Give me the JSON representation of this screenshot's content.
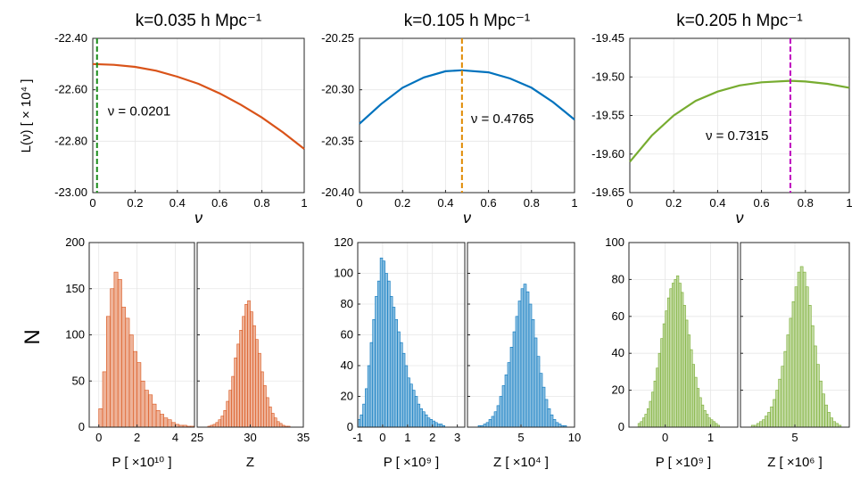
{
  "figure": {
    "ylabel_top": "L(ν)  [ × 10⁴ ]",
    "ylabel_bottom": "N"
  },
  "chart_data": [
    {
      "type": "line",
      "id": "line1",
      "title": "k=0.035 h Mpc⁻¹",
      "xlabel": "ν",
      "xlim": [
        0,
        1
      ],
      "ylim": [
        -23.0,
        -22.4
      ],
      "xticks": [
        0,
        0.2,
        0.4,
        0.6,
        0.8,
        1
      ],
      "xtick_labels": [
        "0",
        "0.2",
        "0.4",
        "0.6",
        "0.8",
        "1"
      ],
      "yticks": [
        -23.0,
        -22.8,
        -22.6,
        -22.4
      ],
      "ytick_labels": [
        "-23.00",
        "-22.80",
        "-22.60",
        "-22.40"
      ],
      "x": [
        0,
        0.1,
        0.2,
        0.3,
        0.4,
        0.5,
        0.6,
        0.7,
        0.8,
        0.9,
        1.0
      ],
      "y": [
        -22.5,
        -22.503,
        -22.511,
        -22.526,
        -22.549,
        -22.577,
        -22.614,
        -22.658,
        -22.708,
        -22.766,
        -22.83
      ],
      "color": "#d95319",
      "vline": {
        "x": 0.0201,
        "color": "#1a8c1a",
        "label": "ν = 0.0201"
      }
    },
    {
      "type": "line",
      "id": "line2",
      "title": "k=0.105 h Mpc⁻¹",
      "xlabel": "ν",
      "xlim": [
        0,
        1
      ],
      "ylim": [
        -20.4,
        -20.25
      ],
      "xticks": [
        0,
        0.2,
        0.4,
        0.6,
        0.8,
        1
      ],
      "xtick_labels": [
        "0",
        "0.2",
        "0.4",
        "0.6",
        "0.8",
        "1"
      ],
      "yticks": [
        -20.4,
        -20.35,
        -20.3,
        -20.25
      ],
      "ytick_labels": [
        "-20.40",
        "-20.35",
        "-20.30",
        "-20.25"
      ],
      "x": [
        0,
        0.1,
        0.2,
        0.3,
        0.4,
        0.4765,
        0.6,
        0.7,
        0.8,
        0.9,
        1.0
      ],
      "y": [
        -20.333,
        -20.314,
        -20.298,
        -20.288,
        -20.282,
        -20.281,
        -20.283,
        -20.289,
        -20.298,
        -20.312,
        -20.329
      ],
      "color": "#0072bd",
      "vline": {
        "x": 0.4765,
        "color": "#e08a00",
        "label": "ν = 0.4765"
      }
    },
    {
      "type": "line",
      "id": "line3",
      "title": "k=0.205 h Mpc⁻¹",
      "xlabel": "ν",
      "xlim": [
        0,
        1
      ],
      "ylim": [
        -19.65,
        -19.45
      ],
      "xticks": [
        0,
        0.2,
        0.4,
        0.6,
        0.8,
        1
      ],
      "xtick_labels": [
        "0",
        "0.2",
        "0.4",
        "0.6",
        "0.8",
        "1"
      ],
      "yticks": [
        -19.65,
        -19.6,
        -19.55,
        -19.5,
        -19.45
      ],
      "ytick_labels": [
        "-19.65",
        "-19.60",
        "-19.55",
        "-19.50",
        "-19.45"
      ],
      "x": [
        0,
        0.1,
        0.2,
        0.3,
        0.4,
        0.5,
        0.6,
        0.7315,
        0.8,
        0.9,
        1.0
      ],
      "y": [
        -19.61,
        -19.576,
        -19.55,
        -19.531,
        -19.519,
        -19.511,
        -19.507,
        -19.505,
        -19.506,
        -19.509,
        -19.514
      ],
      "color": "#77ac30",
      "vline": {
        "x": 0.7315,
        "color": "#bf00bf",
        "label": "ν = 0.7315"
      }
    },
    {
      "type": "histogram",
      "id": "h1a",
      "ylim": [
        0,
        200
      ],
      "yticks": [
        0,
        50,
        100,
        150,
        200
      ],
      "ytick_labels": [
        "0",
        "50",
        "100",
        "150",
        "200"
      ],
      "xlim": [
        -0.5,
        5
      ],
      "xticks": [
        0,
        2,
        4
      ],
      "xtick_labels": [
        "0",
        "2",
        "4"
      ],
      "xlabel": "P [ ×10¹⁰ ]",
      "bin_start": 0,
      "bin_width": 0.2,
      "counts": [
        20,
        60,
        120,
        150,
        168,
        160,
        130,
        118,
        100,
        82,
        70,
        50,
        40,
        35,
        25,
        18,
        14,
        10,
        8,
        5,
        3,
        2,
        2,
        1,
        1,
        0
      ],
      "color": "#d95319"
    },
    {
      "type": "histogram",
      "id": "h1b",
      "ylim": [
        0,
        200
      ],
      "yticks": [
        0,
        50,
        100,
        150,
        200
      ],
      "xlim": [
        25,
        35
      ],
      "xticks": [
        25,
        30,
        35
      ],
      "xtick_labels": [
        "25",
        "30",
        "35"
      ],
      "xlabel": "Z",
      "bin_start": 26,
      "bin_width": 0.25,
      "counts": [
        1,
        2,
        3,
        5,
        8,
        12,
        18,
        28,
        40,
        55,
        75,
        90,
        105,
        120,
        133,
        137,
        125,
        110,
        95,
        80,
        60,
        45,
        32,
        22,
        15,
        10,
        6,
        4,
        2,
        1,
        1
      ],
      "color": "#d95319"
    },
    {
      "type": "histogram",
      "id": "h2a",
      "ylim": [
        0,
        120
      ],
      "yticks": [
        0,
        20,
        40,
        60,
        80,
        100,
        120
      ],
      "ytick_labels": [
        "0",
        "20",
        "40",
        "60",
        "80",
        "100",
        "120"
      ],
      "xlim": [
        -1,
        3.3
      ],
      "xticks": [
        -1,
        0,
        1,
        2,
        3
      ],
      "xtick_labels": [
        "-1",
        "0",
        "1",
        "2",
        "3"
      ],
      "xlabel": "P [ ×10⁹ ]",
      "bin_start": -1,
      "bin_width": 0.1,
      "counts": [
        5,
        8,
        15,
        25,
        40,
        55,
        70,
        85,
        95,
        110,
        108,
        100,
        95,
        85,
        78,
        70,
        62,
        55,
        48,
        40,
        32,
        28,
        24,
        20,
        15,
        12,
        10,
        8,
        6,
        5,
        4,
        3,
        2,
        2,
        1
      ],
      "color": "#0072bd"
    },
    {
      "type": "histogram",
      "id": "h2b",
      "ylim": [
        0,
        120
      ],
      "yticks": [
        0,
        20,
        40,
        60,
        80,
        100,
        120
      ],
      "xlim": [
        0,
        10
      ],
      "xticks": [
        5,
        10
      ],
      "xtick_labels": [
        "5",
        "10"
      ],
      "xlabel": "Z [ ×10⁴ ]",
      "bin_start": 1,
      "bin_width": 0.25,
      "counts": [
        1,
        1,
        2,
        3,
        5,
        7,
        10,
        14,
        20,
        27,
        34,
        42,
        52,
        62,
        72,
        82,
        90,
        93,
        88,
        80,
        70,
        58,
        46,
        35,
        26,
        18,
        12,
        8,
        5,
        3,
        2,
        1,
        1
      ],
      "color": "#0072bd"
    },
    {
      "type": "histogram",
      "id": "h3a",
      "ylim": [
        0,
        100
      ],
      "yticks": [
        0,
        20,
        40,
        60,
        80,
        100
      ],
      "ytick_labels": [
        "0",
        "20",
        "40",
        "60",
        "80",
        "100"
      ],
      "xlim": [
        -0.8,
        1.6
      ],
      "xticks": [
        0,
        1
      ],
      "xtick_labels": [
        "0",
        "1"
      ],
      "xlabel": "P [ ×10⁹ ]",
      "bin_start": -0.6,
      "bin_width": 0.05,
      "counts": [
        2,
        3,
        5,
        7,
        10,
        14,
        19,
        25,
        32,
        40,
        48,
        56,
        63,
        70,
        75,
        78,
        80,
        82,
        78,
        73,
        66,
        58,
        50,
        42,
        34,
        27,
        21,
        16,
        12,
        9,
        7,
        5,
        4,
        3,
        2,
        1
      ],
      "color": "#77ac30"
    },
    {
      "type": "histogram",
      "id": "h3b",
      "ylim": [
        0,
        100
      ],
      "yticks": [
        0,
        20,
        40,
        60,
        80,
        100
      ],
      "xlim": [
        0,
        10
      ],
      "xticks": [
        5
      ],
      "xtick_labels": [
        "5"
      ],
      "xlabel": "Z [ ×10⁶ ]",
      "bin_start": 1,
      "bin_width": 0.25,
      "counts": [
        1,
        1,
        2,
        3,
        4,
        6,
        8,
        11,
        15,
        20,
        26,
        33,
        41,
        50,
        59,
        68,
        76,
        84,
        87,
        84,
        76,
        66,
        55,
        44,
        34,
        25,
        18,
        12,
        8,
        5,
        3,
        2,
        1
      ],
      "color": "#77ac30"
    }
  ]
}
